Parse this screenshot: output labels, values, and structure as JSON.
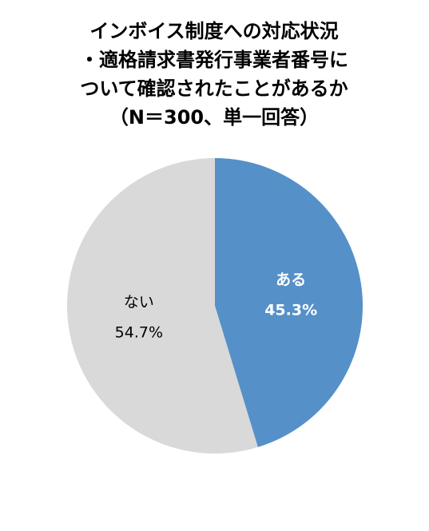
{
  "chart_data": {
    "type": "pie",
    "title": [
      "インボイス制度への対応状況",
      "・適格請求書発行事業者番号に",
      "ついて確認されたことがあるか",
      "（N＝300、単一回答）"
    ],
    "categories": [
      "ある",
      "ない"
    ],
    "values": [
      45.3,
      54.7
    ],
    "value_labels": [
      "45.3%",
      "54.7%"
    ],
    "colors": [
      "#5590c8",
      "#d9d9d9"
    ]
  }
}
